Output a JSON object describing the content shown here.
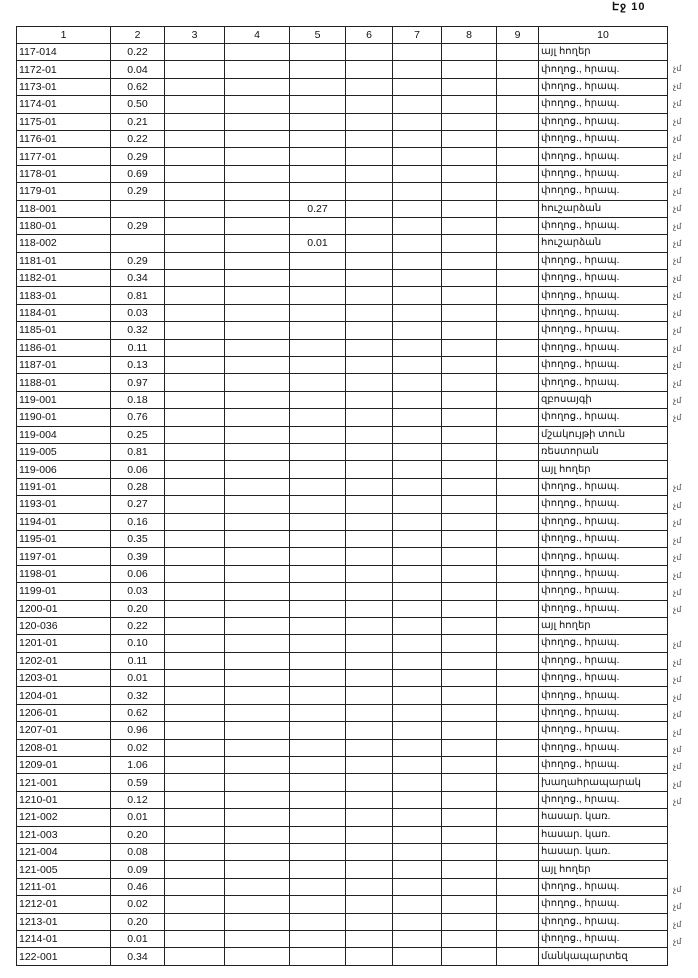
{
  "page_label": "Էջ 10",
  "columns": [
    "1",
    "2",
    "3",
    "4",
    "5",
    "6",
    "7",
    "8",
    "9",
    "10"
  ],
  "rows": [
    {
      "c1": "117-014",
      "c2": "0.22",
      "c5": "",
      "c10": "այլ հողեր",
      "note": ""
    },
    {
      "c1": "1172-01",
      "c2": "0.04",
      "c5": "",
      "c10": "փողոց., հրապ.",
      "note": "չմ"
    },
    {
      "c1": "1173-01",
      "c2": "0.62",
      "c5": "",
      "c10": "փողոց., հրապ.",
      "note": "չմ"
    },
    {
      "c1": "1174-01",
      "c2": "0.50",
      "c5": "",
      "c10": "փողոց., հրապ.",
      "note": "չմ"
    },
    {
      "c1": "1175-01",
      "c2": "0.21",
      "c5": "",
      "c10": "փողոց., հրապ.",
      "note": "չմ"
    },
    {
      "c1": "1176-01",
      "c2": "0.22",
      "c5": "",
      "c10": "փողոց., հրապ.",
      "note": "չմ"
    },
    {
      "c1": "1177-01",
      "c2": "0.29",
      "c5": "",
      "c10": "փողոց., հրապ.",
      "note": "չմ"
    },
    {
      "c1": "1178-01",
      "c2": "0.69",
      "c5": "",
      "c10": "փողոց., հրապ.",
      "note": "չմ"
    },
    {
      "c1": "1179-01",
      "c2": "0.29",
      "c5": "",
      "c10": "փողոց., հրապ.",
      "note": "չմ"
    },
    {
      "c1": "118-001",
      "c2": "",
      "c5": "0.27",
      "c10": "հուշարձան",
      "note": "չմ"
    },
    {
      "c1": "1180-01",
      "c2": "0.29",
      "c5": "",
      "c10": "փողոց., հրապ.",
      "note": "չմ"
    },
    {
      "c1": "118-002",
      "c2": "",
      "c5": "0.01",
      "c10": "հուշարձան",
      "note": "չմ"
    },
    {
      "c1": "1181-01",
      "c2": "0.29",
      "c5": "",
      "c10": "փողոց., հրապ.",
      "note": "չմ"
    },
    {
      "c1": "1182-01",
      "c2": "0.34",
      "c5": "",
      "c10": "փողոց., հրապ.",
      "note": "չմ"
    },
    {
      "c1": "1183-01",
      "c2": "0.81",
      "c5": "",
      "c10": "փողոց., հրապ.",
      "note": "չմ"
    },
    {
      "c1": "1184-01",
      "c2": "0.03",
      "c5": "",
      "c10": "փողոց., հրապ.",
      "note": "չմ"
    },
    {
      "c1": "1185-01",
      "c2": "0.32",
      "c5": "",
      "c10": "փողոց., հրապ.",
      "note": "չմ"
    },
    {
      "c1": "1186-01",
      "c2": "0.11",
      "c5": "",
      "c10": "փողոց., հրապ.",
      "note": "չմ"
    },
    {
      "c1": "1187-01",
      "c2": "0.13",
      "c5": "",
      "c10": "փողոց., հրապ.",
      "note": "չմ"
    },
    {
      "c1": "1188-01",
      "c2": "0.97",
      "c5": "",
      "c10": "փողոց., հրապ.",
      "note": "չմ"
    },
    {
      "c1": "119-001",
      "c2": "0.18",
      "c5": "",
      "c10": "զբոսայգի",
      "note": "չմ"
    },
    {
      "c1": "1190-01",
      "c2": "0.76",
      "c5": "",
      "c10": "փողոց., հրապ.",
      "note": "չմ"
    },
    {
      "c1": "119-004",
      "c2": "0.25",
      "c5": "",
      "c10": "մշակույթի տուն",
      "note": ""
    },
    {
      "c1": "119-005",
      "c2": "0.81",
      "c5": "",
      "c10": "ռեստորան",
      "note": ""
    },
    {
      "c1": "119-006",
      "c2": "0.06",
      "c5": "",
      "c10": "այլ հողեր",
      "note": ""
    },
    {
      "c1": "1191-01",
      "c2": "0.28",
      "c5": "",
      "c10": "փողոց., հրապ.",
      "note": "չմ"
    },
    {
      "c1": "1193-01",
      "c2": "0.27",
      "c5": "",
      "c10": "փողոց., հրապ.",
      "note": "չմ"
    },
    {
      "c1": "1194-01",
      "c2": "0.16",
      "c5": "",
      "c10": "փողոց., հրապ.",
      "note": "չմ"
    },
    {
      "c1": "1195-01",
      "c2": "0.35",
      "c5": "",
      "c10": "փողոց., հրապ.",
      "note": "չմ"
    },
    {
      "c1": "1197-01",
      "c2": "0.39",
      "c5": "",
      "c10": "փողոց., հրապ.",
      "note": "չմ"
    },
    {
      "c1": "1198-01",
      "c2": "0.06",
      "c5": "",
      "c10": "փողոց., հրապ.",
      "note": "չմ"
    },
    {
      "c1": "1199-01",
      "c2": "0.03",
      "c5": "",
      "c10": "փողոց., հրապ.",
      "note": "չմ"
    },
    {
      "c1": "1200-01",
      "c2": "0.20",
      "c5": "",
      "c10": "փողոց., հրապ.",
      "note": "չմ"
    },
    {
      "c1": "120-036",
      "c2": "0.22",
      "c5": "",
      "c10": "այլ հողեր",
      "note": ""
    },
    {
      "c1": "1201-01",
      "c2": "0.10",
      "c5": "",
      "c10": "փողոց., հրապ.",
      "note": "չմ"
    },
    {
      "c1": "1202-01",
      "c2": "0.11",
      "c5": "",
      "c10": "փողոց., հրապ.",
      "note": "չմ"
    },
    {
      "c1": "1203-01",
      "c2": "0.01",
      "c5": "",
      "c10": "փողոց., հրապ.",
      "note": "չմ"
    },
    {
      "c1": "1204-01",
      "c2": "0.32",
      "c5": "",
      "c10": "փողոց., հրապ.",
      "note": "չմ"
    },
    {
      "c1": "1206-01",
      "c2": "0.62",
      "c5": "",
      "c10": "փողոց., հրապ.",
      "note": "չմ"
    },
    {
      "c1": "1207-01",
      "c2": "0.96",
      "c5": "",
      "c10": "փողոց., հրապ.",
      "note": "չմ"
    },
    {
      "c1": "1208-01",
      "c2": "0.02",
      "c5": "",
      "c10": "փողոց., հրապ.",
      "note": "չմ"
    },
    {
      "c1": "1209-01",
      "c2": "1.06",
      "c5": "",
      "c10": "փողոց., հրապ.",
      "note": "չմ"
    },
    {
      "c1": "121-001",
      "c2": "0.59",
      "c5": "",
      "c10": "խաղահրապարակ",
      "note": "չմ"
    },
    {
      "c1": "1210-01",
      "c2": "0.12",
      "c5": "",
      "c10": "փողոց., հրապ.",
      "note": "չմ"
    },
    {
      "c1": "121-002",
      "c2": "0.01",
      "c5": "",
      "c10": "հասար. կառ.",
      "note": ""
    },
    {
      "c1": "121-003",
      "c2": "0.20",
      "c5": "",
      "c10": "հասար. կառ.",
      "note": ""
    },
    {
      "c1": "121-004",
      "c2": "0.08",
      "c5": "",
      "c10": "հասար. կառ.",
      "note": ""
    },
    {
      "c1": "121-005",
      "c2": "0.09",
      "c5": "",
      "c10": "այլ հողեր",
      "note": ""
    },
    {
      "c1": "1211-01",
      "c2": "0.46",
      "c5": "",
      "c10": "փողոց., հրապ.",
      "note": "չմ"
    },
    {
      "c1": "1212-01",
      "c2": "0.02",
      "c5": "",
      "c10": "փողոց., հրապ.",
      "note": "չմ"
    },
    {
      "c1": "1213-01",
      "c2": "0.20",
      "c5": "",
      "c10": "փողոց., հրապ.",
      "note": "չմ"
    },
    {
      "c1": "1214-01",
      "c2": "0.01",
      "c5": "",
      "c10": "փողոց., հրապ.",
      "note": "չմ"
    },
    {
      "c1": "122-001",
      "c2": "0.34",
      "c5": "",
      "c10": "մանկապարտեզ",
      "note": ""
    }
  ]
}
